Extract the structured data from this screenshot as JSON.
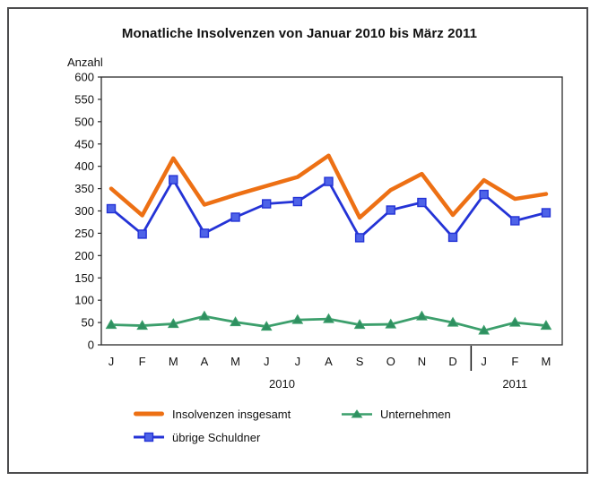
{
  "frame": {
    "background": "#ffffff",
    "border_color": "#4c4c4e"
  },
  "chart_data": {
    "type": "line",
    "title": "Monatliche Insolvenzen von Januar 2010 bis März 2011",
    "ylabel": "Anzahl",
    "ylim": [
      0,
      600
    ],
    "ytick_step": 50,
    "grid": "off",
    "axis_color": "#2b2b2b",
    "text_color": "#111111",
    "categories": [
      "J",
      "F",
      "M",
      "A",
      "M",
      "J",
      "J",
      "A",
      "S",
      "O",
      "N",
      "D",
      "J",
      "F",
      "M"
    ],
    "year_groups": [
      {
        "label": "2010",
        "months": 12
      },
      {
        "label": "2011",
        "months": 3
      }
    ],
    "series": [
      {
        "name": "Insolvenzen insgesamt",
        "color": "#ED7014",
        "marker": "none",
        "marker_fill": "#ED7014",
        "line_width": 4.5,
        "values": [
          350,
          290,
          418,
          314,
          336,
          356,
          376,
          424,
          285,
          347,
          383,
          291,
          369,
          327,
          338
        ]
      },
      {
        "name": "übrige Schuldner",
        "color": "#2433D6",
        "marker": "square",
        "marker_fill": "#4E63E8",
        "line_width": 2.8,
        "values": [
          305,
          248,
          370,
          250,
          286,
          316,
          321,
          366,
          240,
          302,
          319,
          241,
          337,
          278,
          296
        ]
      },
      {
        "name": "Unternehmen",
        "color": "#3C9F6C",
        "marker": "triangle",
        "marker_fill": "#2E9060",
        "line_width": 2.8,
        "values": [
          45,
          43,
          47,
          64,
          51,
          41,
          56,
          58,
          45,
          46,
          64,
          50,
          32,
          50,
          43
        ]
      }
    ],
    "legend": {
      "position": "bottom-left, two rows",
      "entries": [
        "Insolvenzen insgesamt",
        "Unternehmen",
        "übrige Schuldner"
      ]
    }
  }
}
